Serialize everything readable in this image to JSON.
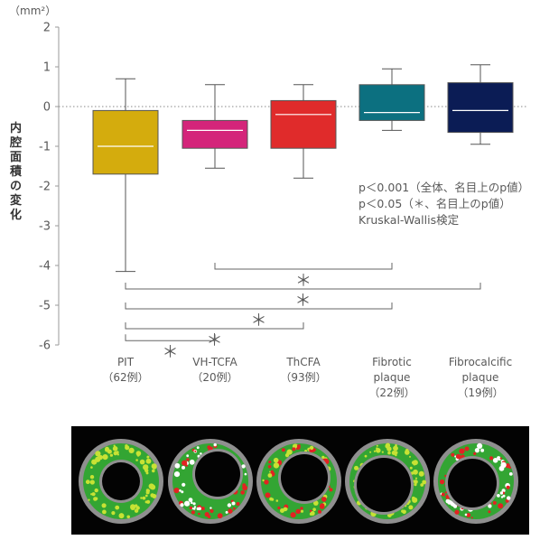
{
  "chart_data": {
    "type": "box",
    "unit_label": "（mm²）",
    "ylabel": "内腔面積の変化",
    "ylim": [
      -6,
      2
    ],
    "y_ticks": [
      "2",
      "1",
      "0",
      "-1",
      "-2",
      "-3",
      "-4",
      "-5",
      "-6"
    ],
    "reference_line": 0,
    "categories": [
      {
        "lines": [
          "PIT",
          "（62例）"
        ],
        "color": "#d4ac0d",
        "whisker_low": -4.15,
        "q1": -1.7,
        "median": -1.0,
        "q3": -0.1,
        "whisker_high": 0.7
      },
      {
        "lines": [
          "VH-TCFA",
          "（20例）"
        ],
        "color": "#d4257a",
        "whisker_low": -1.55,
        "q1": -1.05,
        "median": -0.6,
        "q3": -0.35,
        "whisker_high": 0.55
      },
      {
        "lines": [
          "ThCFA",
          "（93例）"
        ],
        "color": "#e02b2b",
        "whisker_low": -1.8,
        "q1": -1.05,
        "median": -0.2,
        "q3": 0.15,
        "whisker_high": 0.55
      },
      {
        "lines": [
          "Fibrotic",
          "plaque",
          "（22例）"
        ],
        "color": "#0c7080",
        "whisker_low": -0.6,
        "q1": -0.35,
        "median": -0.15,
        "q3": 0.55,
        "whisker_high": 0.95
      },
      {
        "lines": [
          "Fibrocalcific",
          "plaque",
          "（19例）"
        ],
        "color": "#0b1c55",
        "whisker_low": -0.95,
        "q1": -0.65,
        "median": -0.1,
        "q3": 0.6,
        "whisker_high": 1.05
      }
    ],
    "annotations": [
      "p＜0.001（全体、名目上のp値）",
      "p＜0.05（＊、名目上のp値）",
      "Kruskal-Wallis検定"
    ],
    "significance": [
      {
        "from": 1,
        "to": 3,
        "y": -4.0,
        "mark": "＊"
      },
      {
        "from": 0,
        "to": 4,
        "y": -4.5,
        "mark": "＊"
      },
      {
        "from": 0,
        "to": 3,
        "y": -5.0,
        "mark": "＊"
      },
      {
        "from": 0,
        "to": 2,
        "y": -5.5,
        "mark": "＊"
      },
      {
        "from": 0,
        "to": 1,
        "y": -5.8,
        "mark": "＊"
      }
    ]
  },
  "ivus_panel": {
    "rings": [
      {
        "name": "pit",
        "colors": {
          "fibrous": "#33a533",
          "fibrofatty": "#c7e234",
          "necrotic": "#e32222",
          "calcium": "#ffffff"
        }
      },
      {
        "name": "vh-tcfa",
        "colors": {
          "fibrous": "#33a533",
          "fibrofatty": "#c7e234",
          "necrotic": "#e32222",
          "calcium": "#ffffff"
        }
      },
      {
        "name": "thcfa",
        "colors": {
          "fibrous": "#33a533",
          "fibrofatty": "#c7e234",
          "necrotic": "#e32222",
          "calcium": "#ffffff"
        }
      },
      {
        "name": "fibrotic",
        "colors": {
          "fibrous": "#33a533",
          "fibrofatty": "#c7e234",
          "necrotic": "#e32222",
          "calcium": "#ffffff"
        }
      },
      {
        "name": "fibrocalcific",
        "colors": {
          "fibrous": "#33a533",
          "fibrofatty": "#c7e234",
          "necrotic": "#e32222",
          "calcium": "#ffffff"
        }
      }
    ]
  }
}
